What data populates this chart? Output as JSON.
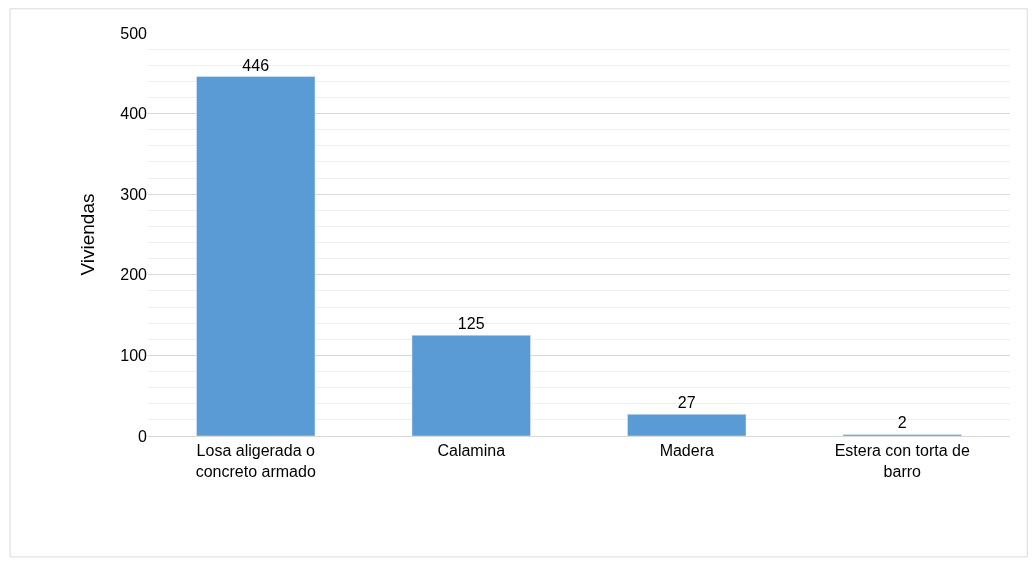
{
  "chart_data": {
    "type": "bar",
    "ylabel": "Viviendas",
    "categories": [
      "Losa aligerada o concreto armado",
      "Calamina",
      "Madera",
      "Estera con torta de barro"
    ],
    "values": [
      446,
      125,
      27,
      2
    ],
    "color": "#5b9bd5",
    "data_labels": true,
    "ylim": [
      0,
      500
    ],
    "yticks": [
      0,
      100,
      200,
      300,
      400,
      500
    ],
    "grid": "y",
    "legend": false
  }
}
